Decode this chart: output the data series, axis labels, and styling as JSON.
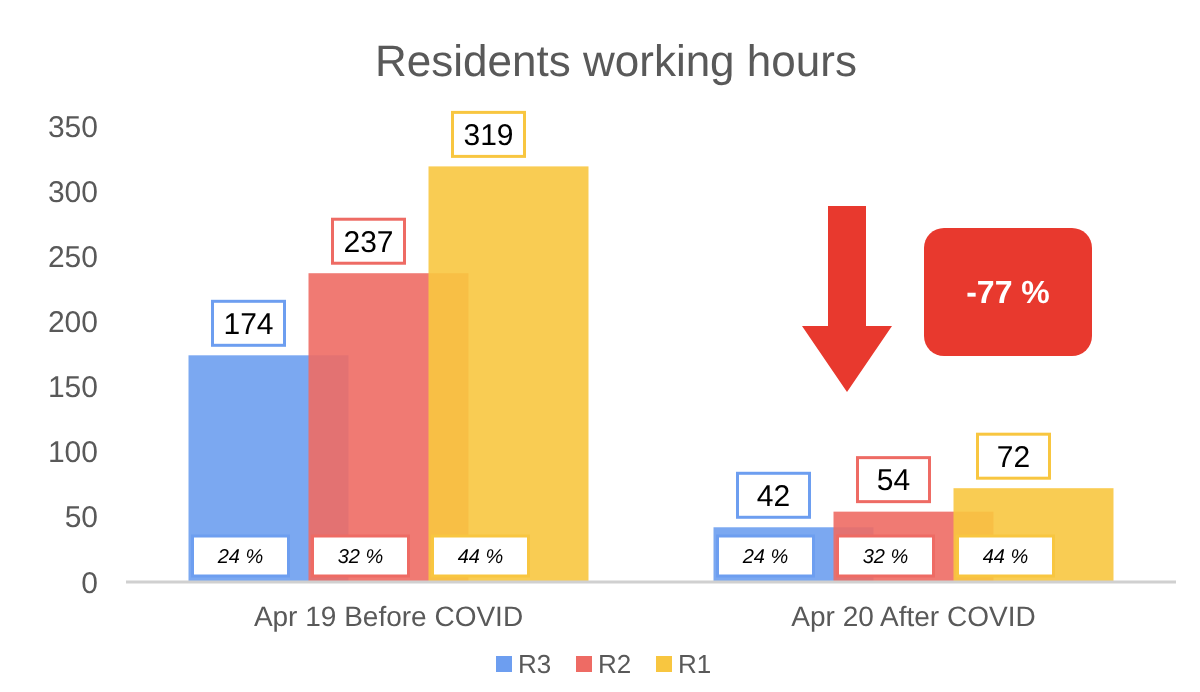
{
  "chart_data": {
    "type": "bar",
    "title": "Residents working hours",
    "categories": [
      "Apr 19 Before COVID",
      "Apr 20 After COVID"
    ],
    "series": [
      {
        "name": "R3",
        "color": "#6d9ef0",
        "values": [
          174,
          42
        ]
      },
      {
        "name": "R2",
        "color": "#ee6b64",
        "values": [
          237,
          54
        ]
      },
      {
        "name": "R1",
        "color": "#f8c640",
        "values": [
          319,
          72
        ]
      }
    ],
    "ylim": [
      0,
      350
    ],
    "yticks": [
      0,
      50,
      100,
      150,
      200,
      250,
      300,
      350
    ],
    "grid": false,
    "legend": "bottom",
    "data_labels": true,
    "annotations": [
      "24 %",
      "32 %",
      "44 %",
      "24 %",
      "32 %",
      "44 %",
      "-77 %"
    ]
  }
}
